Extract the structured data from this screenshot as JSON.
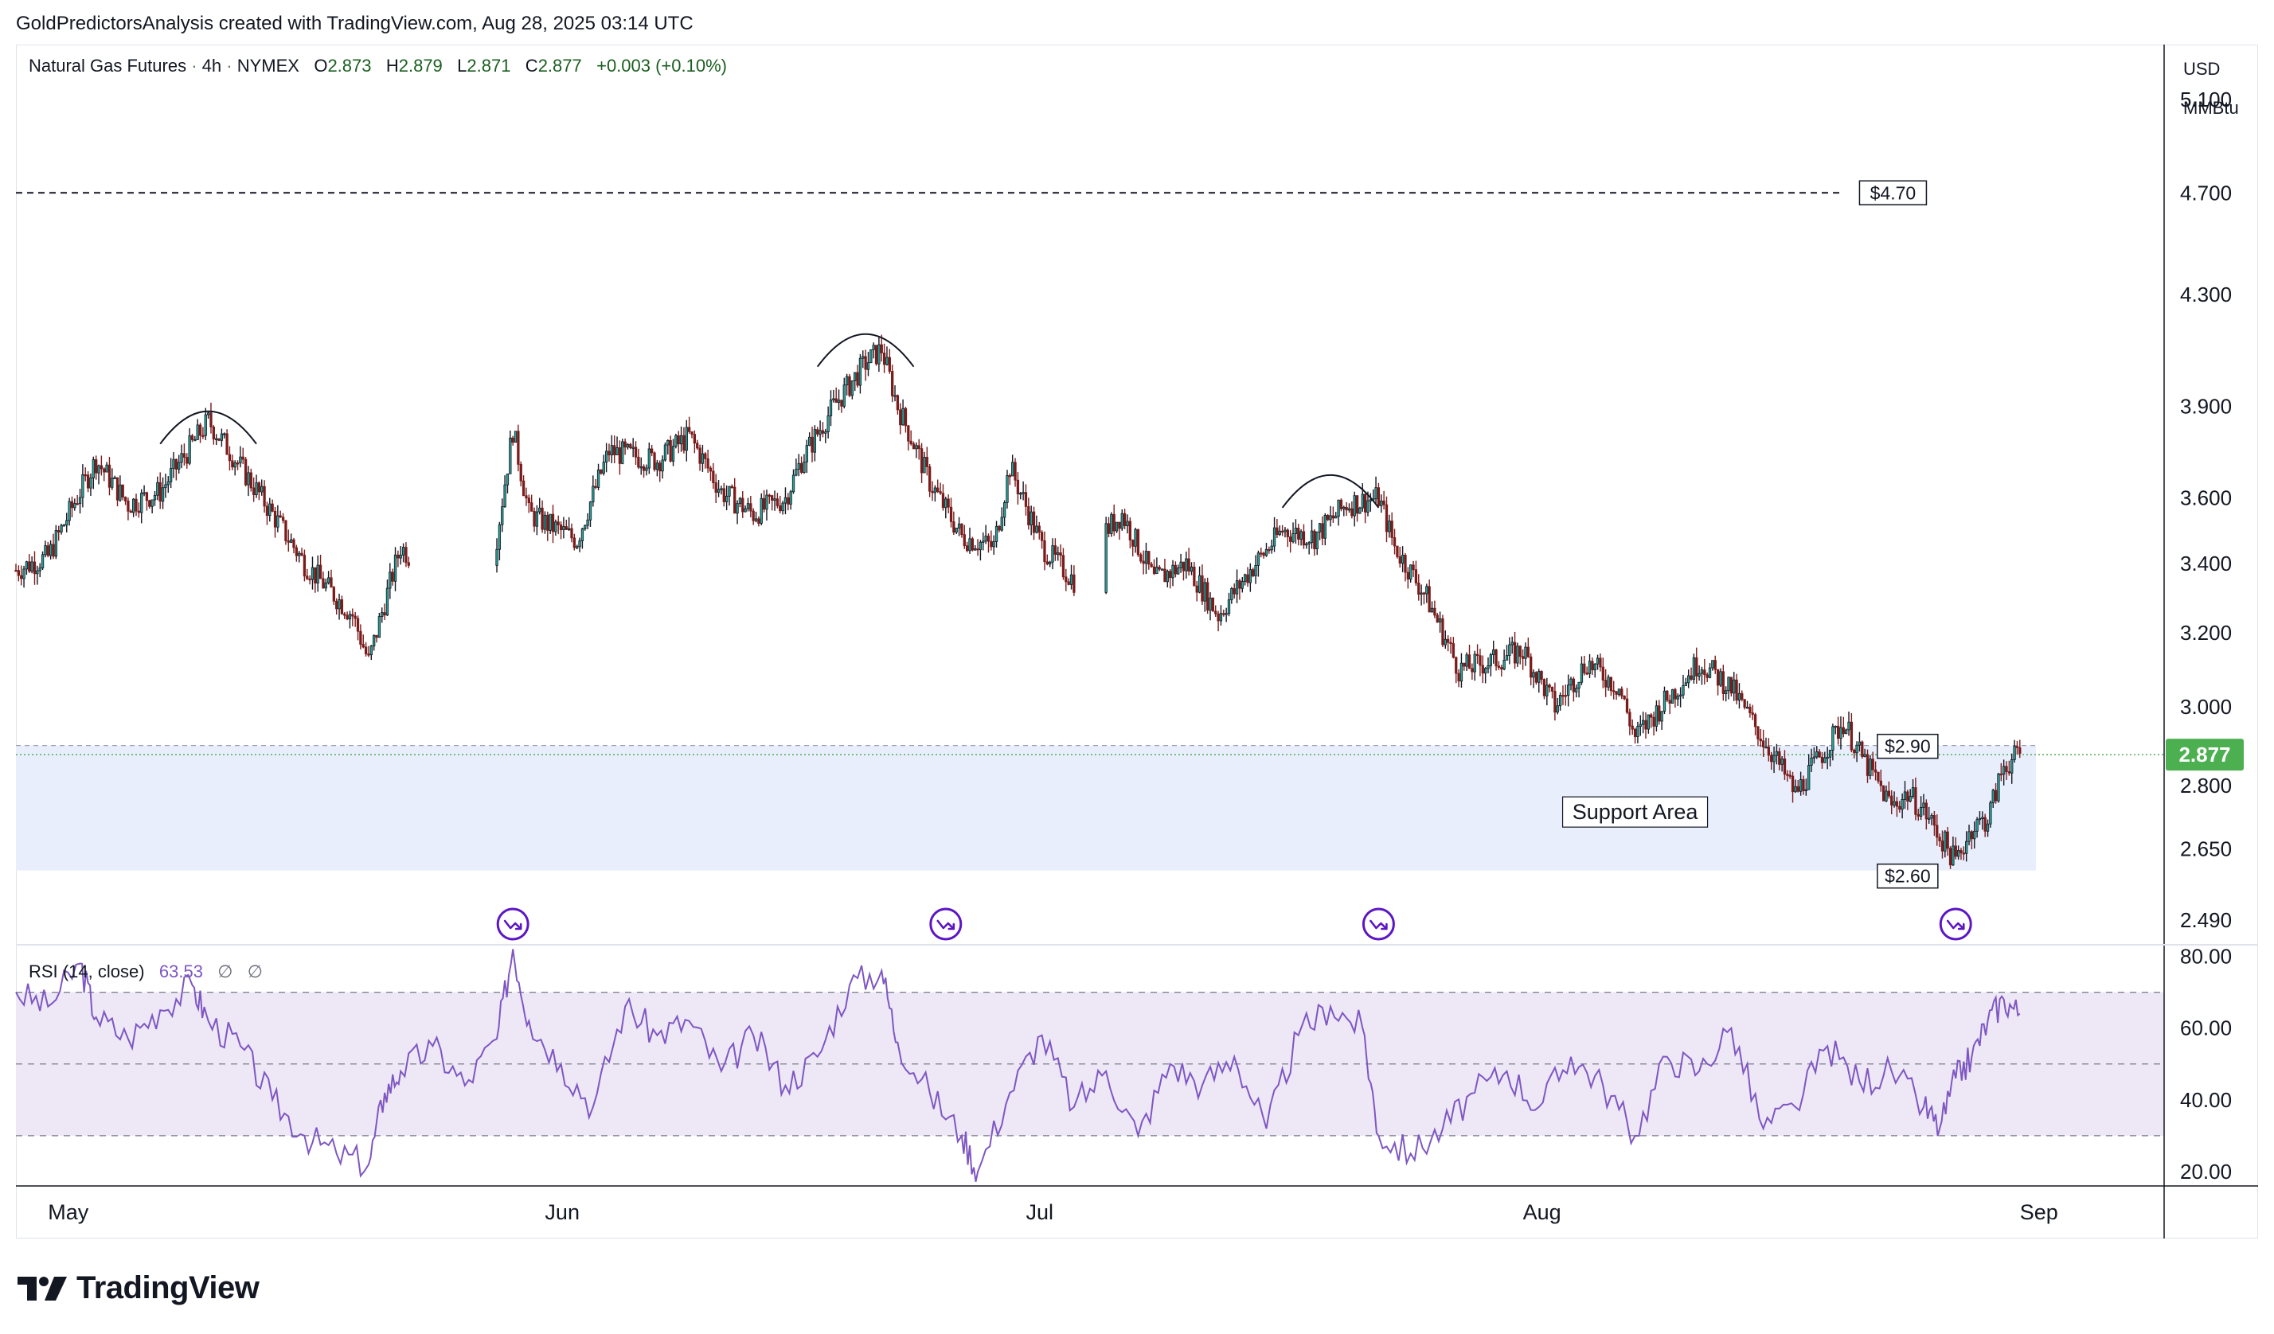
{
  "credit": "GoldPredictorsAnalysis created with TradingView.com, Aug 28, 2025 03:14 UTC",
  "legend": {
    "symbol": "Natural Gas Futures",
    "interval": "4h",
    "exchange": "NYMEX",
    "o_label": "O",
    "o": "2.873",
    "h_label": "H",
    "h": "2.879",
    "l_label": "L",
    "l": "2.871",
    "c_label": "C",
    "c": "2.877",
    "change": "+0.003 (+0.10%)"
  },
  "rsi_legend": {
    "name": "RSI",
    "params": "(14, close)",
    "value": "63.53",
    "na1": "∅",
    "na2": "∅"
  },
  "currency": "USD",
  "unit": "MMBtu",
  "logo_text": "TradingView",
  "logo_icon": "tradingview-logo-icon",
  "colors": {
    "up": "#26a69a",
    "down": "#ef5350",
    "candle_body": "#131722",
    "candle_down": "#7b1c1c",
    "rsi_line": "#7e57c2",
    "rsi_band": "#ede7f6",
    "support": "#e8eefc",
    "last_price": "#4caf50",
    "event_icon": "#5c16c5"
  },
  "chart_data": [
    {
      "type": "candlestick",
      "ylim": [
        2.44,
        5.35
      ],
      "yscale": "log",
      "yticks": [
        2.49,
        2.65,
        2.8,
        3.0,
        3.2,
        3.4,
        3.6,
        3.9,
        4.3,
        4.7,
        5.1
      ],
      "ytick_labels": [
        "2.490",
        "2.650",
        "2.800",
        "3.000",
        "3.200",
        "3.400",
        "3.600",
        "3.900",
        "4.300",
        "4.700",
        "5.100"
      ],
      "x_range": [
        "2025-04-29",
        "2025-09-10"
      ],
      "xticks": [
        {
          "date": "2025-05-01",
          "label": "May"
        },
        {
          "date": "2025-06-01",
          "label": "Jun"
        },
        {
          "date": "2025-07-01",
          "label": "Jul"
        },
        {
          "date": "2025-08-01",
          "label": "Aug"
        },
        {
          "date": "2025-09-01",
          "label": "Sep"
        }
      ],
      "price_path": [
        [
          "2025-04-29",
          3.38
        ],
        [
          "2025-05-01",
          3.42
        ],
        [
          "2025-05-04",
          3.72
        ],
        [
          "2025-05-06",
          3.58
        ],
        [
          "2025-05-08",
          3.62
        ],
        [
          "2025-05-11",
          3.85
        ],
        [
          "2025-05-13",
          3.7
        ],
        [
          "2025-05-15",
          3.55
        ],
        [
          "2025-05-17",
          3.4
        ],
        [
          "2025-05-20",
          3.25
        ],
        [
          "2025-05-21",
          3.12
        ],
        [
          "2025-05-23",
          3.45
        ],
        [
          "2025-05-26",
          3.3
        ],
        [
          "2025-05-28",
          3.28
        ],
        [
          "2025-05-29",
          3.48
        ],
        [
          "2025-05-30",
          3.82
        ],
        [
          "2025-05-31",
          3.55
        ],
        [
          "2025-06-03",
          3.47
        ],
        [
          "2025-06-05",
          3.75
        ],
        [
          "2025-06-08",
          3.72
        ],
        [
          "2025-06-10",
          3.8
        ],
        [
          "2025-06-12",
          3.62
        ],
        [
          "2025-06-14",
          3.55
        ],
        [
          "2025-06-16",
          3.6
        ],
        [
          "2025-06-17",
          3.72
        ],
        [
          "2025-06-19",
          3.9
        ],
        [
          "2025-06-21",
          4.05
        ],
        [
          "2025-06-22",
          4.1
        ],
        [
          "2025-06-23",
          3.9
        ],
        [
          "2025-06-25",
          3.65
        ],
        [
          "2025-06-27",
          3.48
        ],
        [
          "2025-06-29",
          3.45
        ],
        [
          "2025-06-30",
          3.7
        ],
        [
          "2025-07-02",
          3.45
        ],
        [
          "2025-07-04",
          3.35
        ],
        [
          "2025-07-06",
          3.5
        ],
        [
          "2025-07-07",
          3.55
        ],
        [
          "2025-07-09",
          3.35
        ],
        [
          "2025-07-11",
          3.4
        ],
        [
          "2025-07-13",
          3.25
        ],
        [
          "2025-07-15",
          3.38
        ],
        [
          "2025-07-17",
          3.5
        ],
        [
          "2025-07-19",
          3.48
        ],
        [
          "2025-07-21",
          3.58
        ],
        [
          "2025-07-23",
          3.6
        ],
        [
          "2025-07-24",
          3.45
        ],
        [
          "2025-07-26",
          3.3
        ],
        [
          "2025-07-28",
          3.1
        ],
        [
          "2025-07-30",
          3.12
        ],
        [
          "2025-08-01",
          3.15
        ],
        [
          "2025-08-03",
          3.0
        ],
        [
          "2025-08-05",
          3.12
        ],
        [
          "2025-08-07",
          3.05
        ],
        [
          "2025-08-08",
          2.92
        ],
        [
          "2025-08-10",
          3.02
        ],
        [
          "2025-08-12",
          3.12
        ],
        [
          "2025-08-14",
          3.05
        ],
        [
          "2025-08-15",
          2.98
        ],
        [
          "2025-08-17",
          2.85
        ],
        [
          "2025-08-18",
          2.78
        ],
        [
          "2025-08-20",
          2.9
        ],
        [
          "2025-08-21",
          2.96
        ],
        [
          "2025-08-22",
          2.88
        ],
        [
          "2025-08-24",
          2.75
        ],
        [
          "2025-08-25",
          2.78
        ],
        [
          "2025-08-26",
          2.74
        ],
        [
          "2025-08-27",
          2.68
        ],
        [
          "2025-08-28",
          2.62
        ],
        [
          "2025-08-29",
          2.7
        ],
        [
          "2025-08-30",
          2.72
        ],
        [
          "2025-08-31",
          2.85
        ],
        [
          "2025-09-01",
          2.877
        ]
      ],
      "last_price": 2.877,
      "last_price_label": "2.877",
      "resistance": {
        "value": 4.7,
        "label": "$4.70"
      },
      "support_area": {
        "from": 2.6,
        "to": 2.9,
        "label": "Support Area",
        "top_label": "$2.90",
        "bottom_label": "$2.60"
      },
      "tops": [
        {
          "start": "2025-05-08",
          "peak": "2025-05-11",
          "end": "2025-05-14",
          "price": 3.87
        },
        {
          "start": "2025-06-18",
          "peak": "2025-06-21",
          "end": "2025-06-24",
          "price": 4.14
        },
        {
          "start": "2025-07-17",
          "peak": "2025-07-20",
          "end": "2025-07-23",
          "price": 3.66
        }
      ],
      "events": [
        "2025-05-30",
        "2025-06-26",
        "2025-07-23",
        "2025-08-28"
      ]
    },
    {
      "type": "line",
      "name": "RSI (14, close)",
      "ylim": [
        16,
        83
      ],
      "yticks": [
        20,
        40,
        60,
        80
      ],
      "ytick_labels": [
        "20.00",
        "40.00",
        "60.00",
        "80.00"
      ],
      "bands": [
        30,
        50,
        70
      ],
      "x": [
        "2025-04-29",
        "2025-05-01",
        "2025-05-03",
        "2025-05-04",
        "2025-05-06",
        "2025-05-08",
        "2025-05-10",
        "2025-05-11",
        "2025-05-13",
        "2025-05-15",
        "2025-05-17",
        "2025-05-19",
        "2025-05-21",
        "2025-05-22",
        "2025-05-23",
        "2025-05-25",
        "2025-05-27",
        "2025-05-29",
        "2025-05-30",
        "2025-05-31",
        "2025-06-02",
        "2025-06-04",
        "2025-06-06",
        "2025-06-08",
        "2025-06-10",
        "2025-06-12",
        "2025-06-14",
        "2025-06-16",
        "2025-06-18",
        "2025-06-20",
        "2025-06-22",
        "2025-06-23",
        "2025-06-25",
        "2025-06-27",
        "2025-06-28",
        "2025-06-30",
        "2025-07-02",
        "2025-07-04",
        "2025-07-06",
        "2025-07-08",
        "2025-07-10",
        "2025-07-12",
        "2025-07-14",
        "2025-07-16",
        "2025-07-18",
        "2025-07-20",
        "2025-07-22",
        "2025-07-23",
        "2025-07-25",
        "2025-07-27",
        "2025-07-29",
        "2025-07-31",
        "2025-08-02",
        "2025-08-04",
        "2025-08-06",
        "2025-08-08",
        "2025-08-10",
        "2025-08-12",
        "2025-08-14",
        "2025-08-16",
        "2025-08-18",
        "2025-08-20",
        "2025-08-22",
        "2025-08-24",
        "2025-08-26",
        "2025-08-27",
        "2025-08-28",
        "2025-08-29",
        "2025-08-30",
        "2025-08-31",
        "2025-09-01"
      ],
      "values": [
        70,
        66,
        78,
        63,
        57,
        65,
        72,
        62,
        55,
        40,
        30,
        25,
        22,
        42,
        48,
        55,
        44,
        57,
        82,
        62,
        50,
        38,
        66,
        58,
        62,
        48,
        58,
        44,
        52,
        72,
        76,
        56,
        42,
        30,
        20,
        42,
        58,
        38,
        48,
        30,
        50,
        44,
        52,
        32,
        58,
        66,
        60,
        30,
        25,
        32,
        42,
        48,
        38,
        52,
        44,
        30,
        52,
        48,
        60,
        32,
        38,
        55,
        45,
        48,
        38,
        32,
        46,
        52,
        62,
        68,
        64
      ]
    }
  ]
}
